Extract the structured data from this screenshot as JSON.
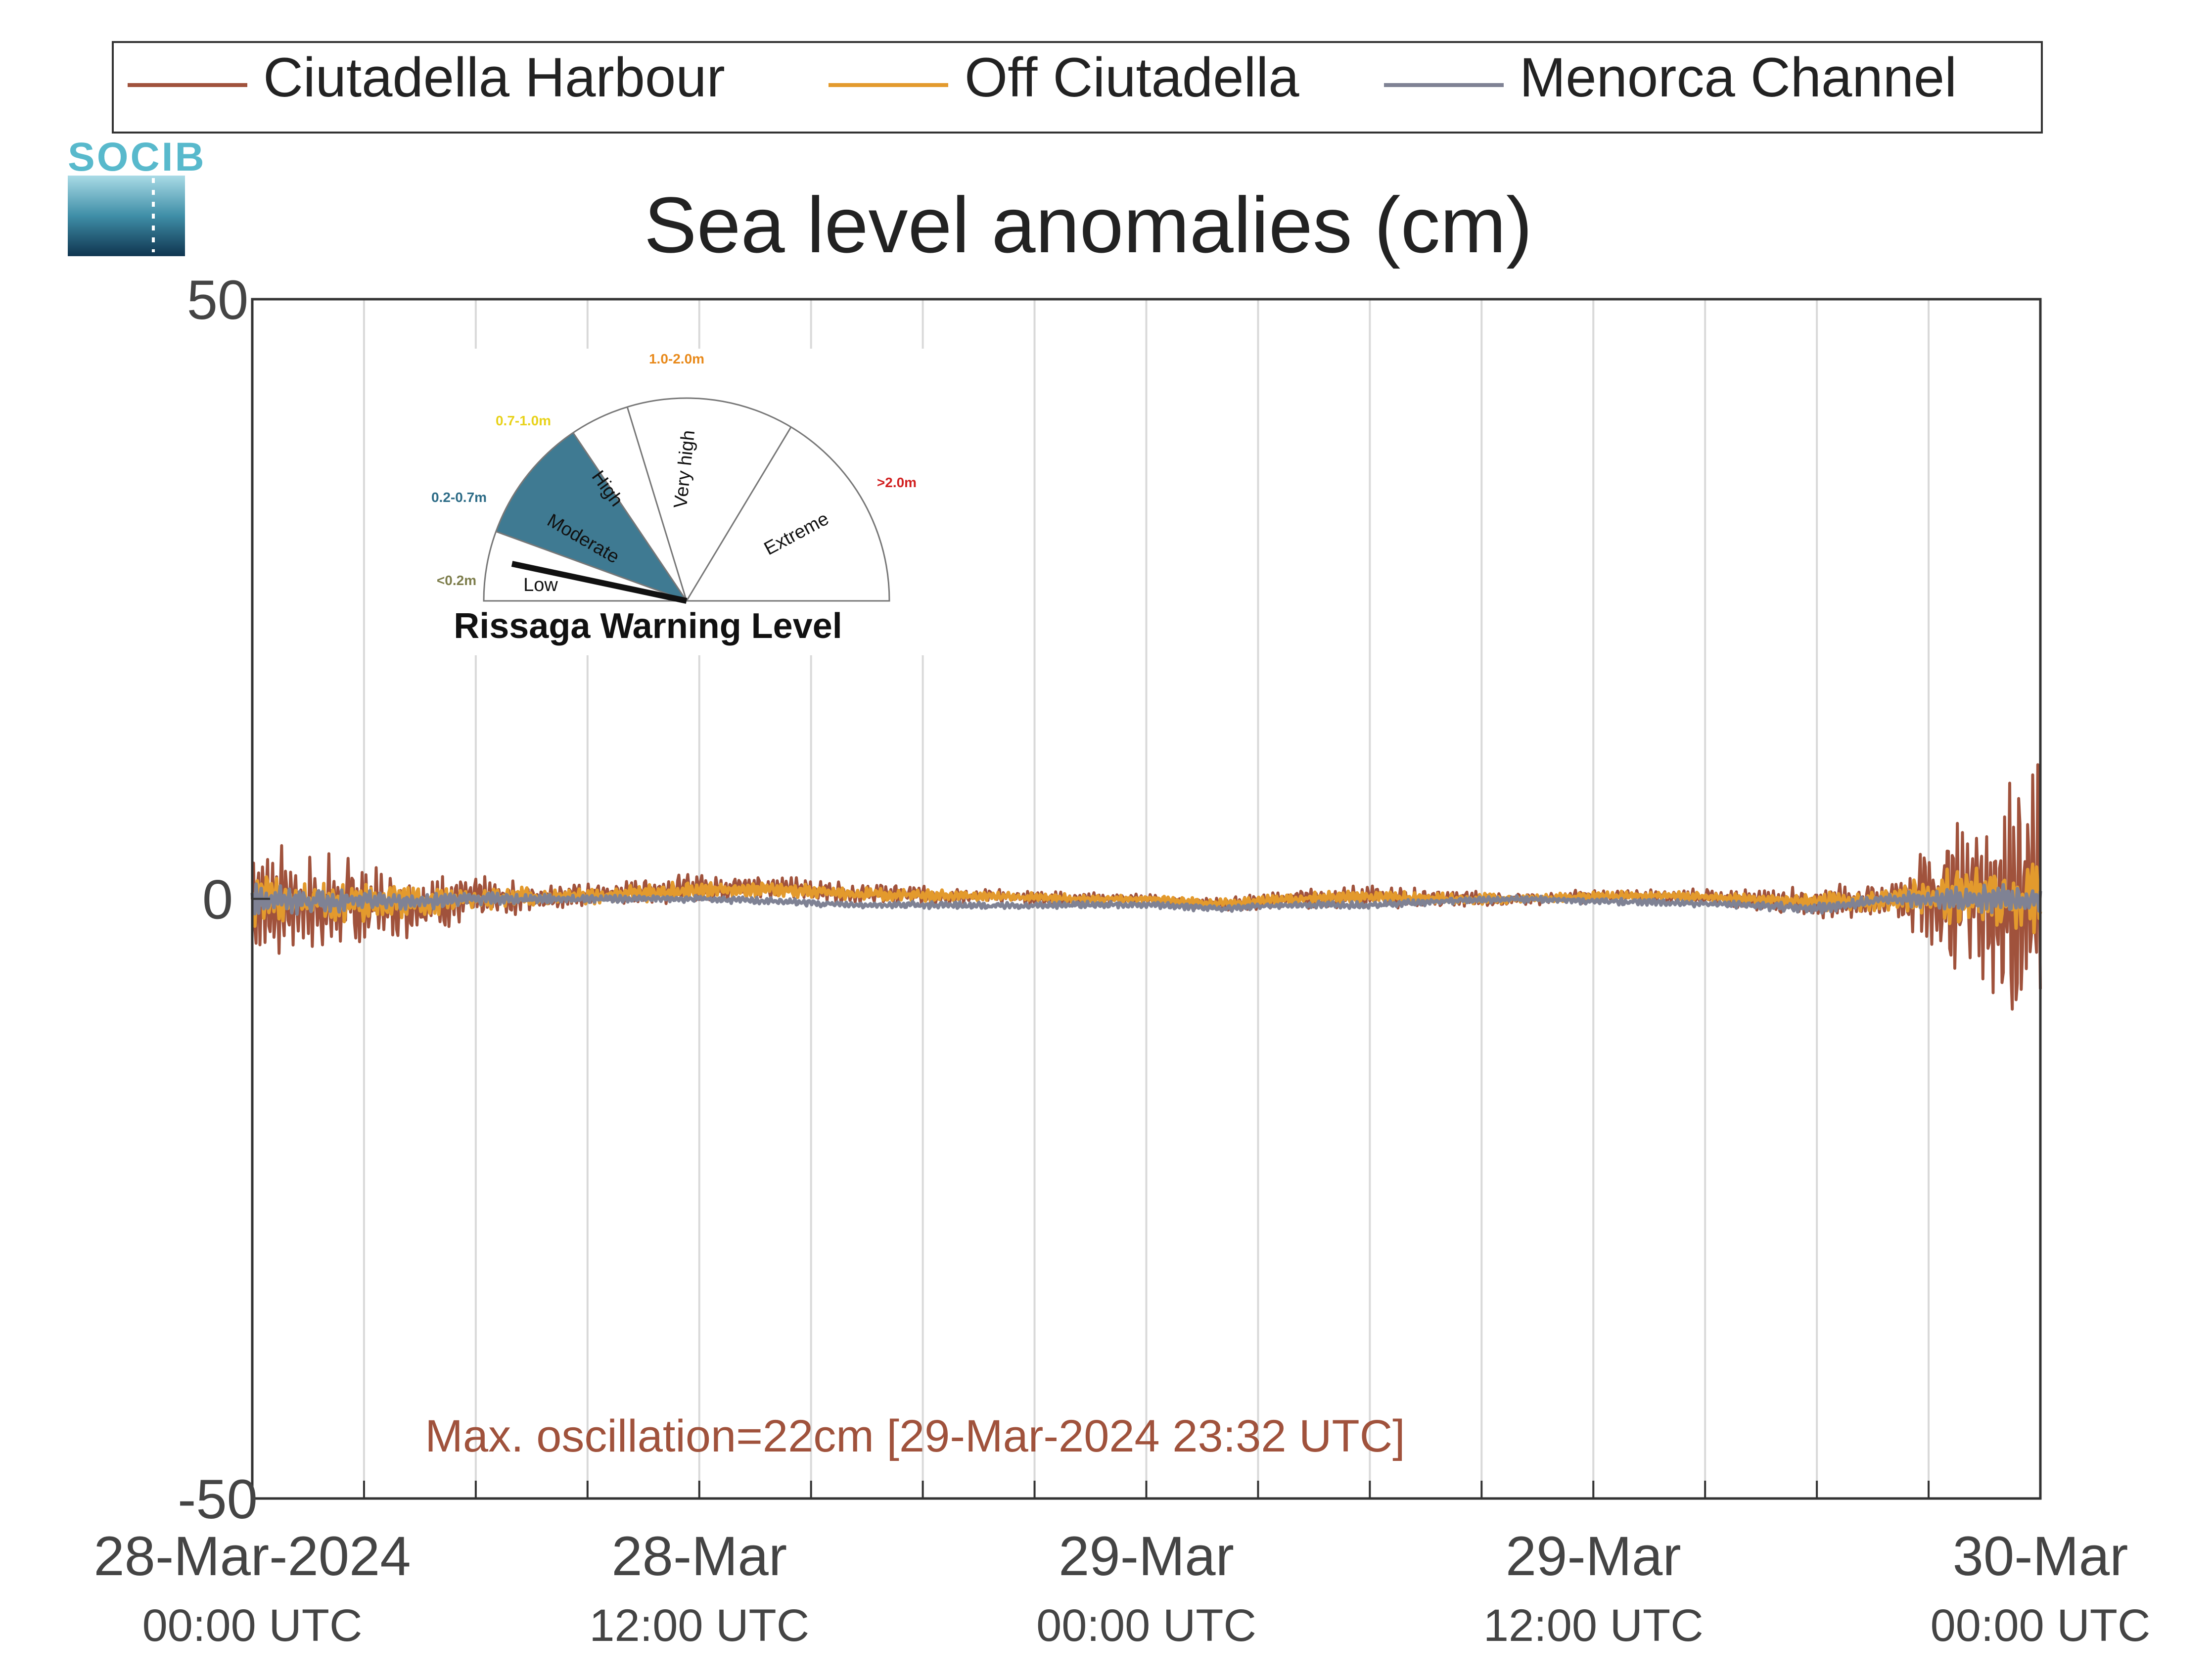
{
  "logo": {
    "text": "SOCIB"
  },
  "legend": {
    "placement": "top",
    "entries": [
      {
        "label": "Ciutadella Harbour",
        "color": "#a0523c"
      },
      {
        "label": "Off Ciutadella",
        "color": "#e39a2d"
      },
      {
        "label": "Menorca Channel",
        "color": "#7f8294"
      }
    ]
  },
  "warning_gauge": {
    "title": "Rissaga Warning Level",
    "sectors": [
      {
        "name": "Low",
        "range": "<0.2m",
        "range_color": "#7c7c4a"
      },
      {
        "name": "Moderate",
        "range": "0.2-0.7m",
        "range_color": "#2c6b86"
      },
      {
        "name": "High",
        "range": "0.7-1.0m",
        "range_color": "#e8d21a"
      },
      {
        "name": "Very high",
        "range": "1.0-2.0m",
        "range_color": "#e8891a"
      },
      {
        "name": "Extreme",
        "range": ">2.0m",
        "range_color": "#d11f1f"
      }
    ],
    "current_level": "Moderate",
    "current_color": "#3f7a92"
  },
  "chart_data": {
    "type": "line",
    "title": "Sea level anomalies (cm)",
    "xlabel": "",
    "ylabel": "",
    "ylim": [
      -50,
      50
    ],
    "yticks": [
      -50,
      0,
      50
    ],
    "xlim": [
      "2024-03-28T00:00Z",
      "2024-03-30T00:00Z"
    ],
    "x_major_ticks": [
      {
        "date": "2024-03-28T00:00Z",
        "label": "28-Mar-2024",
        "sublabel": "00:00 UTC"
      },
      {
        "date": "2024-03-28T12:00Z",
        "label": "28-Mar",
        "sublabel": "12:00 UTC"
      },
      {
        "date": "2024-03-29T00:00Z",
        "label": "29-Mar",
        "sublabel": "00:00 UTC"
      },
      {
        "date": "2024-03-29T12:00Z",
        "label": "29-Mar",
        "sublabel": "12:00 UTC"
      },
      {
        "date": "2024-03-30T00:00Z",
        "label": "30-Mar",
        "sublabel": "00:00 UTC"
      }
    ],
    "grid": {
      "vertical_every_hours": 3,
      "horizontal": false
    },
    "x": [
      "2024-03-28T00:00Z",
      "2024-03-28T02:00Z",
      "2024-03-28T04:00Z",
      "2024-03-28T06:00Z",
      "2024-03-28T08:00Z",
      "2024-03-28T10:00Z",
      "2024-03-28T12:00Z",
      "2024-03-28T14:00Z",
      "2024-03-28T16:00Z",
      "2024-03-28T18:00Z",
      "2024-03-28T20:00Z",
      "2024-03-28T22:00Z",
      "2024-03-29T00:00Z",
      "2024-03-29T02:00Z",
      "2024-03-29T04:00Z",
      "2024-03-29T06:00Z",
      "2024-03-29T08:00Z",
      "2024-03-29T10:00Z",
      "2024-03-29T12:00Z",
      "2024-03-29T14:00Z",
      "2024-03-29T16:00Z",
      "2024-03-29T18:00Z",
      "2024-03-29T20:00Z",
      "2024-03-29T22:00Z",
      "2024-03-30T00:00Z"
    ],
    "series": [
      {
        "name": "Ciutadella Harbour",
        "color": "#a0523c",
        "envelope": [
          5,
          4.5,
          3,
          2,
          1,
          1,
          1.5,
          1,
          1,
          0.8,
          0.6,
          0.6,
          0.4,
          0.6,
          0.8,
          1,
          0.8,
          0.6,
          0.6,
          0.6,
          0.8,
          1.5,
          1.5,
          8,
          12
        ],
        "baseline": [
          0,
          -0.5,
          -0.5,
          0,
          0.2,
          0.5,
          1,
          1,
          0.5,
          0.3,
          0.2,
          0,
          0,
          -0.5,
          0,
          0.2,
          0,
          0,
          0.2,
          0.3,
          0,
          -0.3,
          0,
          0.5,
          0
        ]
      },
      {
        "name": "Off Ciutadella",
        "color": "#e39a2d",
        "envelope": [
          2.5,
          2,
          1.5,
          1,
          0.8,
          0.8,
          0.8,
          0.6,
          0.6,
          0.5,
          0.4,
          0.4,
          0.3,
          0.4,
          0.5,
          0.6,
          0.5,
          0.4,
          0.4,
          0.4,
          0.5,
          0.8,
          1,
          3,
          4
        ],
        "baseline": [
          0,
          -0.3,
          -0.3,
          0,
          0.2,
          0.4,
          0.8,
          0.8,
          0.4,
          0.3,
          0.2,
          0,
          0,
          -0.4,
          0,
          0.2,
          0,
          0,
          0.2,
          0.3,
          0,
          -0.3,
          0,
          0.4,
          0
        ]
      },
      {
        "name": "Menorca Channel",
        "color": "#7f8294",
        "envelope": [
          1.5,
          1,
          0.8,
          0.6,
          0.4,
          0.3,
          0.3,
          0.3,
          0.3,
          0.3,
          0.3,
          0.3,
          0.3,
          0.3,
          0.3,
          0.3,
          0.3,
          0.3,
          0.3,
          0.3,
          0.3,
          0.5,
          0.5,
          1.2,
          1.5
        ],
        "baseline": [
          0,
          -0.2,
          -0.2,
          0,
          0,
          0,
          0,
          -0.2,
          -0.5,
          -0.5,
          -0.6,
          -0.5,
          -0.5,
          -0.8,
          -0.5,
          -0.5,
          -0.2,
          0,
          -0.2,
          -0.3,
          -0.5,
          -0.8,
          0,
          0,
          0
        ]
      }
    ],
    "annotation": {
      "text": "Max. oscillation=22cm [29-Mar-2024 23:32 UTC]",
      "color": "#a0523c"
    }
  }
}
